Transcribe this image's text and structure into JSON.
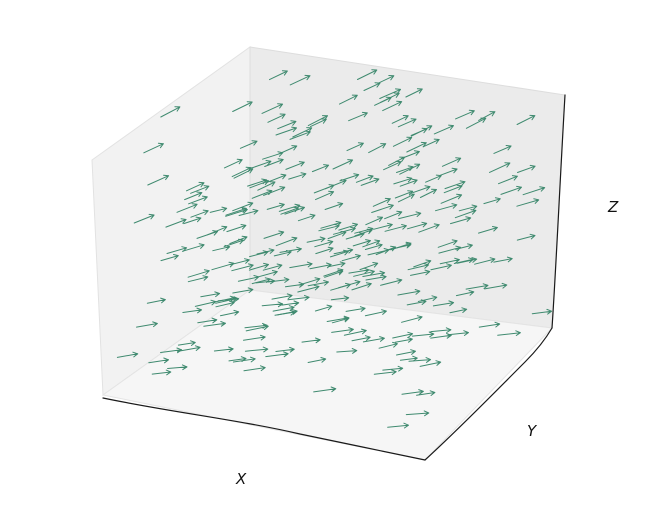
{
  "chart_data": {
    "type": "quiver3d",
    "xlabel": "X",
    "ylabel": "Y",
    "zlabel": "Z",
    "grid": false,
    "arrow_color": "#3f8a6f",
    "axis_color": "#1a1a1a",
    "pane_colors": {
      "left": "#f2f2f2",
      "right": "#ebebeb",
      "floor": "#f6f6f6"
    },
    "arrow_direction": [
      1,
      0.25,
      0.35
    ],
    "arrow_count": 280
  }
}
